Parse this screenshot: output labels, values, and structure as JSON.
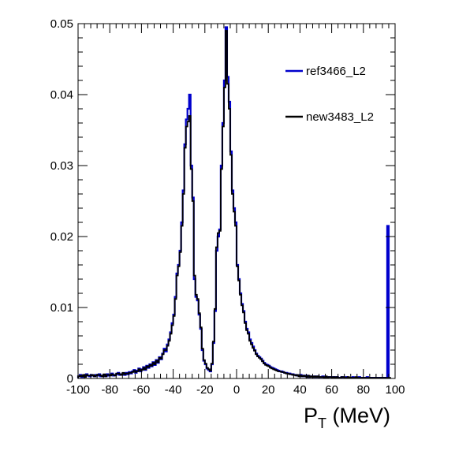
{
  "chart_data": {
    "type": "line",
    "title": "",
    "xlabel_main": "P",
    "xlabel_sub": "T",
    "xlabel_rest": " (MeV)",
    "xlim": [
      -100,
      100
    ],
    "ylim": [
      0,
      0.05
    ],
    "xticks": [
      "-100",
      "-80",
      "-60",
      "-40",
      "-20",
      "0",
      "20",
      "40",
      "60",
      "80",
      "100"
    ],
    "yticks": [
      "0",
      "0.01",
      "0.02",
      "0.03",
      "0.04",
      "0.05"
    ],
    "grid": false,
    "legend_position": "top-right",
    "bin_width": 1,
    "bin_start": -100,
    "series": [
      {
        "name": "ref3466_L2",
        "color": "#0000cc",
        "values": [
          0.0003,
          0.0005,
          0.0002,
          0.0004,
          0.0003,
          0.0006,
          0.0004,
          0.0003,
          0.0005,
          0.0004,
          0.0003,
          0.0005,
          0.0004,
          0.0006,
          0.0003,
          0.0004,
          0.0005,
          0.0003,
          0.0006,
          0.0004,
          0.0005,
          0.0007,
          0.0004,
          0.0005,
          0.0006,
          0.0008,
          0.0005,
          0.0006,
          0.0007,
          0.0005,
          0.0008,
          0.0006,
          0.0009,
          0.0007,
          0.001,
          0.0012,
          0.0008,
          0.0011,
          0.0014,
          0.001,
          0.0013,
          0.0016,
          0.0012,
          0.0018,
          0.0015,
          0.002,
          0.0017,
          0.0023,
          0.0019,
          0.0026,
          0.0022,
          0.003,
          0.0027,
          0.0035,
          0.0042,
          0.0038,
          0.0048,
          0.0055,
          0.0065,
          0.0078,
          0.009,
          0.0115,
          0.0148,
          0.016,
          0.018,
          0.022,
          0.0265,
          0.033,
          0.0365,
          0.038,
          0.04,
          0.03,
          0.0255,
          0.014,
          0.0115,
          0.011,
          0.009,
          0.007,
          0.004,
          0.0025,
          0.002,
          0.0014,
          0.0012,
          0.001,
          0.002,
          0.005,
          0.0095,
          0.018,
          0.02,
          0.021,
          0.03,
          0.036,
          0.042,
          0.0495,
          0.0425,
          0.039,
          0.032,
          0.0265,
          0.024,
          0.022,
          0.016,
          0.014,
          0.012,
          0.0105,
          0.0095,
          0.008,
          0.007,
          0.0065,
          0.0055,
          0.005,
          0.0045,
          0.004,
          0.0035,
          0.0032,
          0.003,
          0.0028,
          0.0025,
          0.0022,
          0.002,
          0.0019,
          0.0018,
          0.0016,
          0.0015,
          0.0014,
          0.0013,
          0.0012,
          0.0011,
          0.001,
          0.001,
          0.0009,
          0.0008,
          0.0008,
          0.0007,
          0.0007,
          0.0006,
          0.0006,
          0.0005,
          0.0005,
          0.0004,
          0.0004,
          0.0005,
          0.0003,
          0.0004,
          0.0003,
          0.0004,
          0.0002,
          0.0003,
          0.0003,
          0.0002,
          0.0003,
          0.0002,
          0.0003,
          0.0002,
          0.0002,
          0.0003,
          0.0002,
          0.0002,
          0.0001,
          0.0002,
          0.0002,
          0.0001,
          0.0002,
          0.0001,
          0.0002,
          0.0001,
          0.0001,
          0.0002,
          0.0001,
          0.0001,
          0.0002,
          0.0001,
          0.0001,
          0.0001,
          0.0002,
          0.0001,
          0.0001,
          0.0001,
          0.0002,
          0.0001,
          0.0001,
          0.0001,
          0.0001,
          0.0002,
          0.0001,
          0.0001,
          0.0001,
          0.0001,
          0.0001,
          0.0001,
          0.0001,
          0.0001,
          0.0001,
          0.0001,
          0.0001,
          0.0001,
          0.0215
        ]
      },
      {
        "name": "new3483_L2",
        "color": "#000000",
        "values": [
          0.0003,
          0.0004,
          0.0003,
          0.0005,
          0.0002,
          0.0005,
          0.0004,
          0.0004,
          0.0004,
          0.0005,
          0.0003,
          0.0004,
          0.0005,
          0.0005,
          0.0004,
          0.0003,
          0.0006,
          0.0003,
          0.0005,
          0.0005,
          0.0004,
          0.0006,
          0.0005,
          0.0004,
          0.0007,
          0.0007,
          0.0006,
          0.0005,
          0.0008,
          0.0006,
          0.0007,
          0.0007,
          0.0008,
          0.0008,
          0.0009,
          0.0011,
          0.0009,
          0.001,
          0.0013,
          0.0011,
          0.0012,
          0.0015,
          0.0013,
          0.0017,
          0.0016,
          0.0019,
          0.0018,
          0.0022,
          0.002,
          0.0025,
          0.0023,
          0.0029,
          0.0028,
          0.0034,
          0.004,
          0.004,
          0.0046,
          0.0053,
          0.0063,
          0.0075,
          0.0088,
          0.0112,
          0.0145,
          0.0158,
          0.0178,
          0.0215,
          0.026,
          0.0325,
          0.0355,
          0.0362,
          0.037,
          0.0295,
          0.025,
          0.0145,
          0.0118,
          0.0112,
          0.0092,
          0.0072,
          0.0042,
          0.0026,
          0.0021,
          0.0015,
          0.0013,
          0.0011,
          0.0021,
          0.0052,
          0.0098,
          0.0185,
          0.0205,
          0.0208,
          0.0295,
          0.0355,
          0.041,
          0.049,
          0.0415,
          0.038,
          0.0315,
          0.026,
          0.0235,
          0.0215,
          0.0158,
          0.0138,
          0.0118,
          0.0103,
          0.0093,
          0.0078,
          0.0068,
          0.0063,
          0.0053,
          0.0048,
          0.0043,
          0.0039,
          0.0034,
          0.0031,
          0.0029,
          0.0027,
          0.0024,
          0.0021,
          0.0019,
          0.0018,
          0.0017,
          0.0015,
          0.0014,
          0.0013,
          0.0012,
          0.0011,
          0.001,
          0.001,
          0.0009,
          0.0009,
          0.0008,
          0.0007,
          0.0007,
          0.0006,
          0.0006,
          0.0005,
          0.0005,
          0.0004,
          0.0005,
          0.0003,
          0.0004,
          0.0003,
          0.0004,
          0.0003,
          0.0002,
          0.0004,
          0.0002,
          0.0003,
          0.0002,
          0.0003,
          0.0002,
          0.0003,
          0.0002,
          0.0002,
          0.0002,
          0.0001,
          0.0003,
          0.0001,
          0.0002,
          0.0002,
          0.0001,
          0.0002,
          0.0001,
          0.0002,
          0.0001,
          0.0001,
          0.0002,
          0.0002,
          0.0001,
          0.0001,
          0.0002,
          0.0001,
          0.0001,
          0.0001,
          0.0001,
          0.0002,
          0.0001,
          0.0001,
          0.0001,
          0.0001,
          0.0001,
          0.0001,
          0.0001,
          0.0001,
          0.0001,
          0.0001,
          0.0001,
          0.0001,
          0.0001,
          0.0001,
          0.0001,
          0.0001,
          0.0001,
          0.0001,
          0.0001,
          0.0001,
          0.0001
        ]
      }
    ]
  }
}
